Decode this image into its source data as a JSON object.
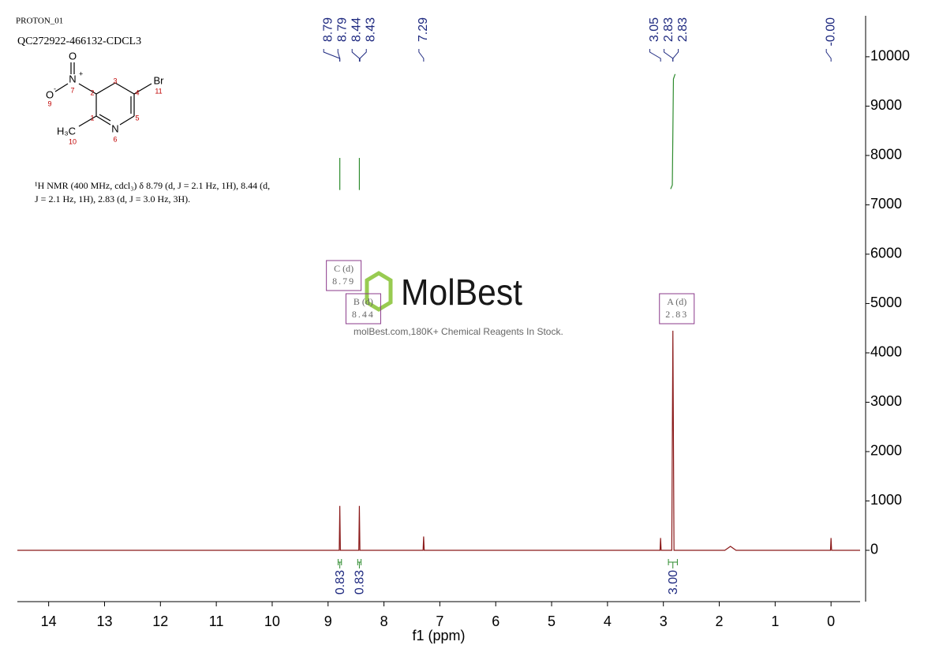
{
  "chart_data": {
    "type": "line",
    "title": "PROTON_01",
    "subtitle": "QC272922-466132-CDCL3",
    "xlabel": "f1 (ppm)",
    "x": [
      14.56,
      9.0,
      8.8,
      8.79,
      8.78,
      8.45,
      8.44,
      8.43,
      7.3,
      7.29,
      7.28,
      3.06,
      3.05,
      3.04,
      2.85,
      2.83,
      2.81,
      1.9,
      1.8,
      1.7,
      0.01,
      0.0,
      -0.01,
      -0.52
    ],
    "series": [
      {
        "color": "#8b1a1a",
        "values": [
          0,
          0,
          0,
          900,
          0,
          0,
          900,
          0,
          0,
          280,
          0,
          0,
          250,
          0,
          0,
          4450,
          0,
          0,
          80,
          0,
          0,
          250,
          0,
          0
        ]
      }
    ],
    "xlim": [
      14.56,
      -0.52
    ],
    "xticks": [
      14,
      13,
      12,
      11,
      10,
      9,
      8,
      7,
      6,
      5,
      4,
      3,
      2,
      1,
      0
    ],
    "ylim": [
      -1040,
      10830
    ],
    "yticks": [
      0,
      1000,
      2000,
      3000,
      4000,
      5000,
      6000,
      7000,
      8000,
      9000,
      10000
    ],
    "peak_labels": {
      "values": [
        8.79,
        8.79,
        8.44,
        8.43,
        7.29,
        3.05,
        2.83,
        2.83,
        0
      ],
      "value_labels": [
        "8.79",
        "8.79",
        "8.44",
        "8.43",
        "7.29",
        "3.05",
        "2.83",
        "2.83",
        "-0.00"
      ],
      "color": "#1f2a80"
    },
    "integrals": [
      {
        "values": 0.83,
        "value_labels": "0.83",
        "range": [
          8.82,
          8.76
        ],
        "curve_x": [
          8.79,
          8.79
        ],
        "curve_y": [
          7300,
          7950
        ]
      },
      {
        "values": 0.83,
        "value_labels": "0.83",
        "range": [
          8.47,
          8.41
        ],
        "curve_x": [
          8.44,
          8.44
        ],
        "curve_y": [
          7300,
          7950
        ]
      },
      {
        "values": 3.0,
        "value_labels": "3.00",
        "range": [
          2.91,
          2.75
        ],
        "curve_x": [
          2.87,
          2.84,
          2.82,
          2.79
        ],
        "curve_y": [
          7320,
          7400,
          9550,
          9650
        ]
      }
    ],
    "multiplets": [
      {
        "name": "C (d)",
        "shift": 8.79
      },
      {
        "name": "B (d)",
        "shift": 8.44
      },
      {
        "name": "A (d)",
        "shift": 2.83
      }
    ]
  },
  "structure": {
    "atoms": [
      {
        "label": "O"
      },
      {
        "label": "N",
        "charge": "+",
        "number": 7
      },
      {
        "label": "O",
        "charge": "-",
        "number": 9
      },
      {
        "label": "Br",
        "number": 11
      },
      {
        "label": "N",
        "number": 6
      },
      {
        "label": "H₃C",
        "number": 10
      },
      {
        "number": 1
      },
      {
        "number": 2
      },
      {
        "number": 3
      },
      {
        "number": 4
      },
      {
        "number": 5
      }
    ]
  },
  "description": [
    "¹H NMR (400 MHz, cdcl₃) δ 8.79 (d, J = 2.1 Hz, 1H), 8.44 (d,",
    "J = 2.1 Hz, 1H), 2.83 (d, J = 3.0 Hz, 3H)."
  ],
  "watermark": {
    "logo": "MolBest",
    "tagline": "molBest.com,180K+ Chemical Reagents In Stock."
  }
}
